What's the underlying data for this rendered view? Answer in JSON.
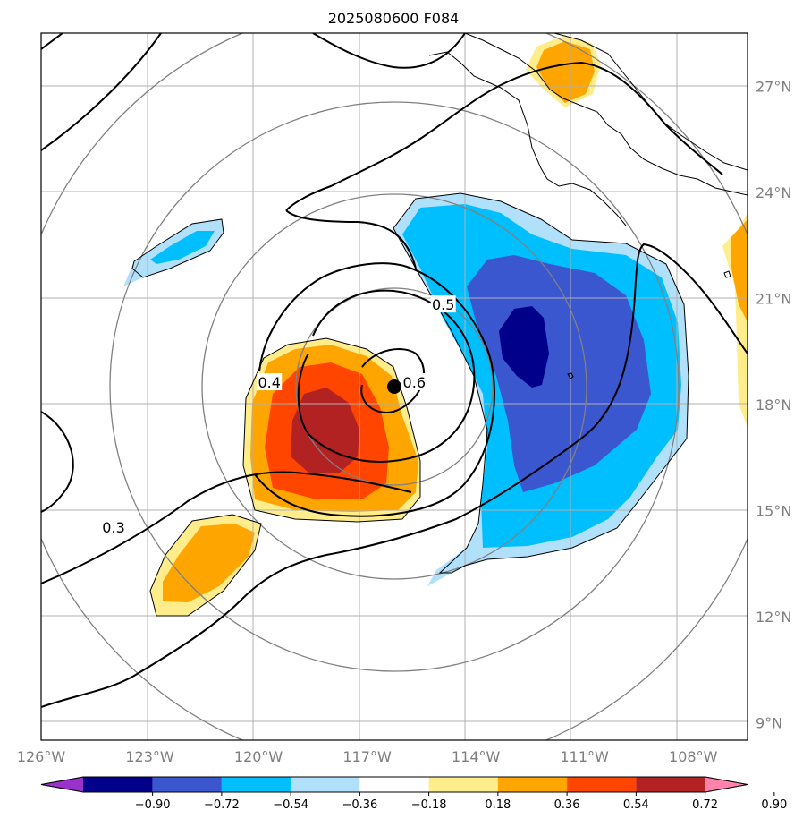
{
  "title": "2025080600 F084",
  "map": {
    "lon_range": [
      -126,
      -106.5
    ],
    "lat_range": [
      8.5,
      28.5
    ],
    "lon_ticks": [
      {
        "value": -126,
        "label": "126°W"
      },
      {
        "value": -123,
        "label": "123°W"
      },
      {
        "value": -120,
        "label": "120°W"
      },
      {
        "value": -117,
        "label": "117°W"
      },
      {
        "value": -114,
        "label": "114°W"
      },
      {
        "value": -111,
        "label": "111°W"
      },
      {
        "value": -108,
        "label": "108°W"
      }
    ],
    "lat_ticks": [
      {
        "value": 9,
        "label": "9°N"
      },
      {
        "value": 12,
        "label": "12°N"
      },
      {
        "value": 15,
        "label": "15°N"
      },
      {
        "value": 18,
        "label": "18°N"
      },
      {
        "value": 21,
        "label": "21°N"
      },
      {
        "value": 24,
        "label": "24°N"
      },
      {
        "value": 27,
        "label": "27°N"
      }
    ],
    "gridlines": true,
    "storm_center": {
      "lon": -116.0,
      "lat": 18.5,
      "marker": "filled-circle"
    },
    "range_rings_deg": [
      2.5,
      5.0,
      8.0,
      12.0
    ],
    "contour_labels": [
      {
        "text": "0.3",
        "lon": -124.0,
        "lat": 14.5
      },
      {
        "text": "0.4",
        "lon": -119.7,
        "lat": 18.6
      },
      {
        "text": "0.5",
        "lon": -114.9,
        "lat": 20.8
      },
      {
        "text": "0.6",
        "lon": -115.7,
        "lat": 18.6
      }
    ]
  },
  "colorbar": {
    "ticks": [
      "−0.90",
      "−0.72",
      "−0.54",
      "−0.36",
      "−0.18",
      "0.18",
      "0.36",
      "0.54",
      "0.72",
      "0.90"
    ],
    "colors": [
      "#9932cc",
      "#00008b",
      "#3a57cf",
      "#00bfff",
      "#b0e0fa",
      "#ffffff",
      "#ffec8b",
      "#ffa500",
      "#ff4500",
      "#b22222",
      "#ff82ab"
    ],
    "extend": "both"
  },
  "colors": {
    "grid": "#b0b0b0",
    "ring": "#808080",
    "coast": "#000000",
    "contour": "#000000"
  }
}
